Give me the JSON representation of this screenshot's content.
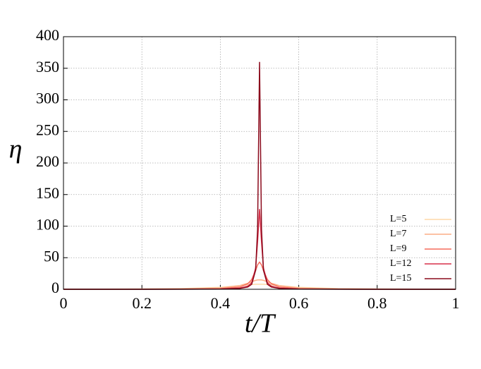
{
  "chart_data": {
    "type": "line",
    "xlabel": "t/T",
    "ylabel": "η",
    "x": [
      0,
      0.1,
      0.2,
      0.3,
      0.4,
      0.45,
      0.47,
      0.48,
      0.49,
      0.495,
      0.5,
      0.505,
      0.51,
      0.52,
      0.53,
      0.55,
      0.6,
      0.7,
      0.8,
      0.9,
      1
    ],
    "series": [
      {
        "name": "L=5",
        "color": "#fdd9a8",
        "values": [
          0.2,
          0.31,
          0.53,
          1.1,
          3.1,
          5.8,
          7.0,
          7.5,
          7.9,
          7.97,
          8,
          7.97,
          7.9,
          7.5,
          7.0,
          5.8,
          3.1,
          1.1,
          0.53,
          0.31,
          0.2
        ]
      },
      {
        "name": "L=7",
        "color": "#fcae85",
        "values": [
          0.1,
          0.15,
          0.26,
          0.58,
          2.07,
          5.85,
          9.6,
          12,
          14.1,
          14.8,
          15,
          14.8,
          14.1,
          12,
          9.6,
          5.85,
          2.07,
          0.58,
          0.26,
          0.15,
          0.1
        ]
      },
      {
        "name": "L=9",
        "color": "#f66c5c",
        "values": [
          0.04,
          0.06,
          0.11,
          0.24,
          0.94,
          3.6,
          8.6,
          15.5,
          29.8,
          38.7,
          43,
          38.7,
          29.8,
          15.5,
          8.6,
          3.6,
          0.94,
          0.24,
          0.11,
          0.06,
          0.04
        ]
      },
      {
        "name": "L=12",
        "color": "#d7304a",
        "values": [
          0.02,
          0.03,
          0.05,
          0.11,
          0.45,
          1.8,
          4.9,
          10.5,
          33.6,
          74.9,
          127,
          74.9,
          33.6,
          10.5,
          4.9,
          1.8,
          0.45,
          0.11,
          0.05,
          0.03,
          0.02
        ]
      },
      {
        "name": "L=15",
        "color": "#8b0a1c",
        "values": [
          0.01,
          0.02,
          0.04,
          0.08,
          0.3,
          1.4,
          3.6,
          7.9,
          30,
          95,
          360,
          95,
          30,
          7.9,
          3.6,
          1.4,
          0.3,
          0.08,
          0.04,
          0.02,
          0.01
        ]
      }
    ],
    "xlim": [
      0,
      1
    ],
    "xticks": [
      0,
      0.2,
      0.4,
      0.6,
      0.8,
      1
    ],
    "ylim": [
      0,
      400
    ],
    "yticks": [
      0,
      50,
      100,
      150,
      200,
      250,
      300,
      350,
      400
    ],
    "grid": true,
    "legend": "lower right"
  }
}
